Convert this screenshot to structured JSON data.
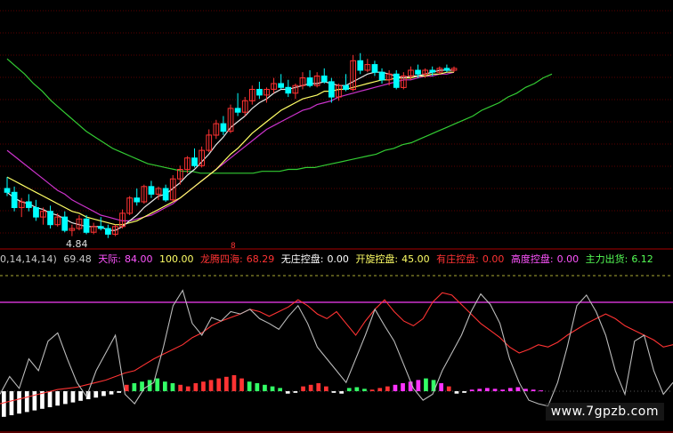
{
  "price_panel": {
    "low_label": "4.84",
    "marker": "8"
  },
  "indicator_bar": {
    "params": "0,14,14,14)",
    "params_value": "69.48",
    "tianji_label": "天际:",
    "tianji_value": "84.00",
    "tianji_extra": "100.00",
    "longteng_label": "龙腾四海:",
    "longteng_value": "68.29",
    "wuzhuang_label": "无庄控盘:",
    "wuzhuang_value": "0.00",
    "kaixuan_label": "开旋控盘:",
    "kaixuan_value": "45.00",
    "youzhuang_label": "有庄控盘:",
    "youzhuang_value": "0.00",
    "gaodu_label": "高度控盘:",
    "gaodu_value": "0.00",
    "zhuli_label": "主力出货:",
    "zhuli_value": "6.12"
  },
  "watermark": "www.7gpzb.com",
  "colors": {
    "up": "#ff3333",
    "down": "#00ffff",
    "ma_white": "#e8e8e8",
    "ma_yellow": "#ffff66",
    "ma_magenta": "#cc33cc",
    "ma_green": "#33cc33",
    "grid_red": "#5a0000",
    "hist_red": "#ff3333",
    "hist_green": "#33ff66",
    "hist_magenta": "#ff33ff",
    "hist_white": "#ffffff"
  },
  "chart_data": {
    "type": "line",
    "candles": [
      [
        10.8,
        11.4,
        10.4,
        10.6
      ],
      [
        10.6,
        10.9,
        9.6,
        9.8
      ],
      [
        9.8,
        10.3,
        9.3,
        10.1
      ],
      [
        10.1,
        10.5,
        9.6,
        9.8
      ],
      [
        9.8,
        10.2,
        9.1,
        9.3
      ],
      [
        9.3,
        9.8,
        8.9,
        9.6
      ],
      [
        9.6,
        9.9,
        8.7,
        8.9
      ],
      [
        8.9,
        9.5,
        8.8,
        9.3
      ],
      [
        9.3,
        9.6,
        8.5,
        8.6
      ],
      [
        8.6,
        8.9,
        8.3,
        8.7
      ],
      [
        8.7,
        9.4,
        8.6,
        9.2
      ],
      [
        9.2,
        9.4,
        8.4,
        8.5
      ],
      [
        8.5,
        9.0,
        8.4,
        8.8
      ],
      [
        8.8,
        9.3,
        8.6,
        8.7
      ],
      [
        8.7,
        8.9,
        8.2,
        8.4
      ],
      [
        8.4,
        8.9,
        8.3,
        8.8
      ],
      [
        8.8,
        9.7,
        8.7,
        9.5
      ],
      [
        9.5,
        10.4,
        9.4,
        10.3
      ],
      [
        10.3,
        10.8,
        9.9,
        10.1
      ],
      [
        10.1,
        11.0,
        10.0,
        10.9
      ],
      [
        10.9,
        11.2,
        10.3,
        10.5
      ],
      [
        10.5,
        10.9,
        10.2,
        10.8
      ],
      [
        10.8,
        11.0,
        10.1,
        10.2
      ],
      [
        10.2,
        11.5,
        10.1,
        11.3
      ],
      [
        11.3,
        12.0,
        11.0,
        11.8
      ],
      [
        11.8,
        12.5,
        11.6,
        12.4
      ],
      [
        12.4,
        12.9,
        11.9,
        12.0
      ],
      [
        12.0,
        13.0,
        11.9,
        12.8
      ],
      [
        12.8,
        13.9,
        12.7,
        13.6
      ],
      [
        13.6,
        14.4,
        13.4,
        14.2
      ],
      [
        14.2,
        14.6,
        13.6,
        13.8
      ],
      [
        13.8,
        15.2,
        13.7,
        15.0
      ],
      [
        15.0,
        15.8,
        14.6,
        14.8
      ],
      [
        14.8,
        15.6,
        14.6,
        15.4
      ],
      [
        15.4,
        16.2,
        15.2,
        16.0
      ],
      [
        16.0,
        16.4,
        15.5,
        15.7
      ],
      [
        15.7,
        16.1,
        15.3,
        16.0
      ],
      [
        16.0,
        16.6,
        15.8,
        16.3
      ],
      [
        16.3,
        16.8,
        16.0,
        16.1
      ],
      [
        16.1,
        16.5,
        15.6,
        15.8
      ],
      [
        15.8,
        16.3,
        15.5,
        16.2
      ],
      [
        16.2,
        16.9,
        16.0,
        16.6
      ],
      [
        16.6,
        17.0,
        16.1,
        16.2
      ],
      [
        16.2,
        16.9,
        16.1,
        16.7
      ],
      [
        16.7,
        17.1,
        16.3,
        16.4
      ],
      [
        16.4,
        16.6,
        15.3,
        15.6
      ],
      [
        15.6,
        16.3,
        15.4,
        16.2
      ],
      [
        16.2,
        16.8,
        15.9,
        16.0
      ],
      [
        16.0,
        17.8,
        15.9,
        17.5
      ],
      [
        17.5,
        17.9,
        16.8,
        17.0
      ],
      [
        17.0,
        17.6,
        16.9,
        17.3
      ],
      [
        17.3,
        17.5,
        16.7,
        16.9
      ],
      [
        16.9,
        17.1,
        16.3,
        16.5
      ],
      [
        16.5,
        17.0,
        16.2,
        16.8
      ],
      [
        16.8,
        17.0,
        16.0,
        16.1
      ],
      [
        16.1,
        16.9,
        16.0,
        16.7
      ],
      [
        16.7,
        17.2,
        16.5,
        17.0
      ],
      [
        17.0,
        17.3,
        16.6,
        16.8
      ],
      [
        16.8,
        17.1,
        16.6,
        17.0
      ],
      [
        17.0,
        17.2,
        16.7,
        16.9
      ],
      [
        16.9,
        17.2,
        16.8,
        17.1
      ],
      [
        17.1,
        17.3,
        16.9,
        17.0
      ],
      [
        17.0,
        17.2,
        16.9,
        17.1
      ]
    ],
    "ma_fast": [
      10.6,
      10.3,
      10.1,
      10.0,
      9.8,
      9.7,
      9.5,
      9.4,
      9.2,
      9.0,
      8.9,
      8.8,
      8.8,
      8.8,
      8.6,
      8.6,
      8.8,
      9.1,
      9.4,
      9.8,
      10.1,
      10.4,
      10.5,
      10.8,
      11.1,
      11.5,
      11.8,
      12.2,
      12.6,
      13.1,
      13.5,
      14.0,
      14.3,
      14.6,
      15.0,
      15.3,
      15.5,
      15.8,
      16.0,
      16.0,
      16.1,
      16.2,
      16.3,
      16.3,
      16.4,
      16.3,
      16.2,
      16.2,
      16.4,
      16.6,
      16.8,
      16.9,
      16.9,
      16.8,
      16.7,
      16.6,
      16.7,
      16.7,
      16.8,
      16.9,
      17.0,
      17.0,
      17.0
    ],
    "ma_mid": [
      11.4,
      11.2,
      11.0,
      10.8,
      10.6,
      10.4,
      10.2,
      10.0,
      9.8,
      9.6,
      9.5,
      9.3,
      9.2,
      9.1,
      9.0,
      8.9,
      8.9,
      9.0,
      9.1,
      9.3,
      9.5,
      9.7,
      9.9,
      10.1,
      10.3,
      10.6,
      10.9,
      11.2,
      11.5,
      11.8,
      12.2,
      12.6,
      12.9,
      13.3,
      13.7,
      14.0,
      14.3,
      14.6,
      14.9,
      15.1,
      15.3,
      15.5,
      15.6,
      15.7,
      15.9,
      15.9,
      16.0,
      16.0,
      16.1,
      16.2,
      16.3,
      16.4,
      16.5,
      16.5,
      16.6,
      16.6,
      16.6,
      16.7,
      16.7,
      16.8,
      16.8,
      16.9,
      16.9
    ],
    "ma_slow": [
      12.8,
      12.5,
      12.2,
      11.9,
      11.6,
      11.3,
      11.0,
      10.7,
      10.5,
      10.2,
      10.0,
      9.8,
      9.6,
      9.4,
      9.3,
      9.2,
      9.1,
      9.1,
      9.2,
      9.3,
      9.4,
      9.6,
      9.8,
      10.0,
      10.3,
      10.6,
      10.9,
      11.2,
      11.5,
      11.8,
      12.1,
      12.4,
      12.7,
      13.0,
      13.3,
      13.6,
      13.9,
      14.1,
      14.3,
      14.5,
      14.7,
      14.9,
      15.0,
      15.2,
      15.3,
      15.4,
      15.6,
      15.7,
      15.8,
      15.9,
      16.0,
      16.1,
      16.2,
      16.3,
      16.4,
      16.5,
      16.5,
      16.6,
      16.7,
      16.7,
      16.8,
      16.8,
      16.9
    ],
    "ma_long": [
      17.6,
      17.2,
      16.8,
      16.3,
      15.9,
      15.4,
      15.0,
      14.6,
      14.2,
      13.8,
      13.5,
      13.2,
      12.9,
      12.7,
      12.5,
      12.3,
      12.1,
      12.0,
      11.9,
      11.8,
      11.7,
      11.7,
      11.6,
      11.6,
      11.6,
      11.6,
      11.6,
      11.6,
      11.6,
      11.7,
      11.7,
      11.7,
      11.8,
      11.8,
      11.9,
      11.9,
      12.0,
      12.1,
      12.2,
      12.3,
      12.4,
      12.5,
      12.6,
      12.8,
      12.9,
      13.1,
      13.2,
      13.4,
      13.6,
      13.8,
      14.0,
      14.2,
      14.4,
      14.6,
      14.9,
      15.1,
      15.3,
      15.6,
      15.8,
      16.1,
      16.3,
      16.6,
      16.8
    ],
    "price_ylim": [
      8.0,
      20.5
    ],
    "ind_white": [
      10,
      25,
      15,
      40,
      30,
      55,
      62,
      40,
      20,
      8,
      30,
      45,
      60,
      10,
      2,
      15,
      20,
      50,
      85,
      98,
      70,
      60,
      75,
      72,
      80,
      78,
      82,
      74,
      70,
      65,
      76,
      85,
      70,
      50,
      40,
      30,
      20,
      40,
      60,
      82,
      68,
      55,
      35,
      15,
      5,
      10,
      30,
      45,
      60,
      80,
      95,
      86,
      70,
      40,
      20,
      5,
      2,
      0,
      20,
      50,
      85,
      94,
      80,
      60,
      30,
      10,
      55,
      60,
      30,
      10,
      20
    ],
    "ind_red": [
      2,
      4,
      6,
      8,
      10,
      12,
      14,
      15,
      16,
      18,
      20,
      22,
      25,
      28,
      30,
      35,
      40,
      44,
      48,
      52,
      58,
      62,
      68,
      72,
      75,
      78,
      82,
      80,
      76,
      80,
      84,
      90,
      85,
      78,
      74,
      80,
      70,
      60,
      72,
      82,
      90,
      80,
      72,
      68,
      74,
      88,
      96,
      94,
      86,
      78,
      70,
      64,
      58,
      50,
      45,
      48,
      52,
      50,
      54,
      60,
      65,
      70,
      74,
      78,
      74,
      68,
      64,
      60,
      56,
      50,
      52
    ],
    "ind_ylim": [
      -10,
      115
    ],
    "hist": [
      -32,
      -30,
      -28,
      -26,
      -24,
      -22,
      -20,
      -18,
      -16,
      -14,
      -12,
      -10,
      -8,
      -6,
      -4,
      -2,
      8,
      10,
      12,
      14,
      16,
      12,
      10,
      8,
      6,
      10,
      12,
      14,
      16,
      18,
      20,
      16,
      12,
      10,
      8,
      6,
      4,
      -3,
      -2,
      6,
      8,
      10,
      6,
      -2,
      -3,
      4,
      5,
      3,
      2,
      4,
      6,
      8,
      10,
      12,
      14,
      16,
      14,
      10,
      6,
      -3,
      -2,
      2,
      3,
      4,
      3,
      2,
      4,
      5,
      3,
      2,
      1
    ],
    "hist_colors": [
      "w",
      "w",
      "w",
      "w",
      "w",
      "w",
      "w",
      "w",
      "w",
      "w",
      "w",
      "w",
      "w",
      "w",
      "w",
      "w",
      "r",
      "g",
      "g",
      "g",
      "g",
      "g",
      "g",
      "r",
      "r",
      "r",
      "r",
      "r",
      "r",
      "r",
      "r",
      "r",
      "g",
      "g",
      "g",
      "g",
      "g",
      "w",
      "w",
      "r",
      "r",
      "r",
      "r",
      "w",
      "w",
      "g",
      "g",
      "g",
      "r",
      "r",
      "r",
      "m",
      "m",
      "m",
      "m",
      "g",
      "g",
      "m",
      "r",
      "w",
      "w",
      "m",
      "m",
      "m",
      "m",
      "m",
      "m",
      "m",
      "m",
      "m",
      "m"
    ]
  }
}
